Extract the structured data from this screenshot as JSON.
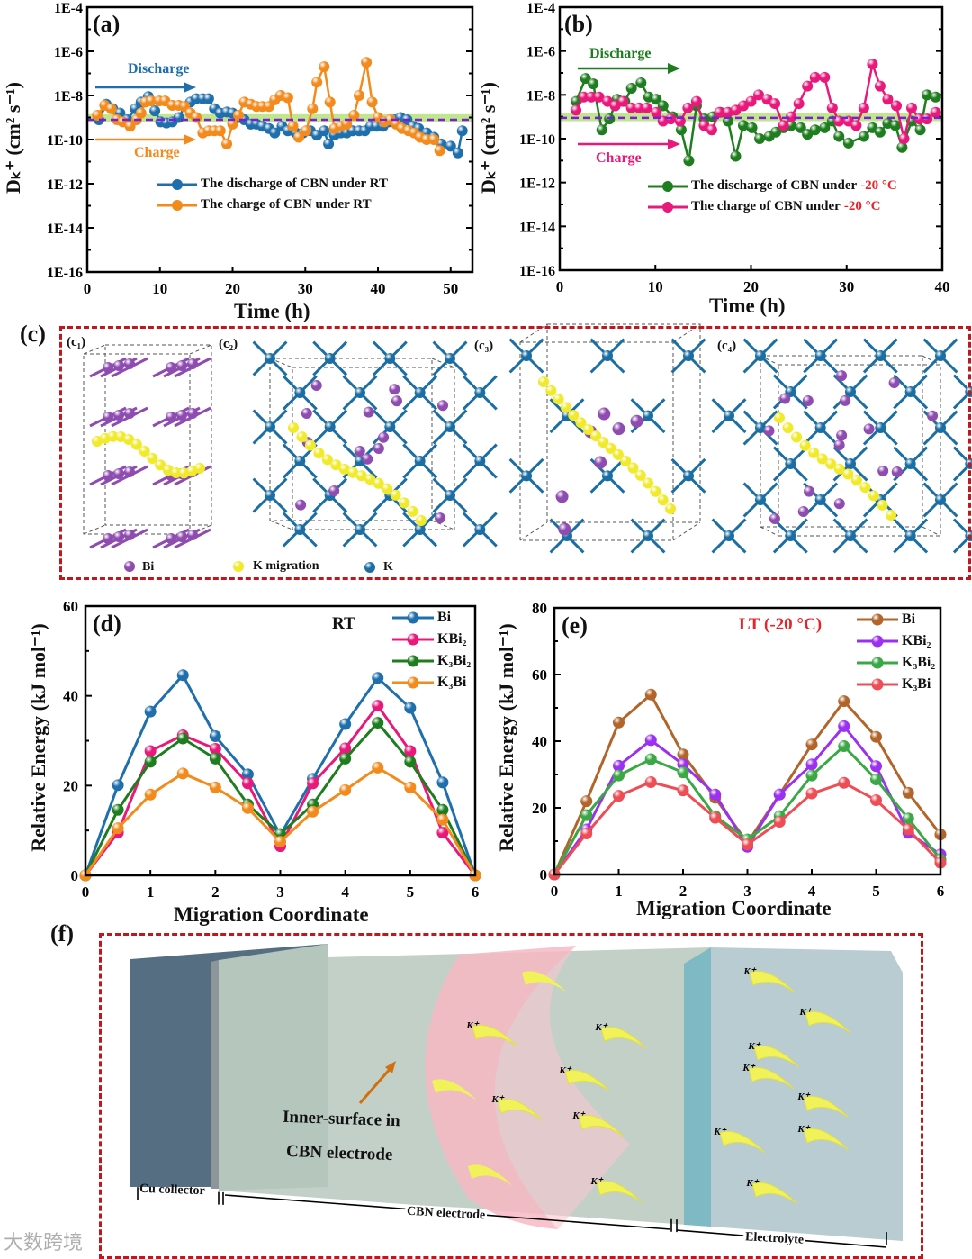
{
  "panels": {
    "a": {
      "label": "(a)",
      "annot_discharge": "Discharge",
      "annot_charge": "Charge"
    },
    "b": {
      "label": "(b)",
      "annot_discharge": "Discharge",
      "annot_charge": "Charge"
    },
    "c": {
      "label": "(c)",
      "sub_labels": [
        "(c₁)",
        "(c₂)",
        "(c₃)",
        "(c₄)"
      ],
      "legend": [
        "Bi",
        "K migration",
        "K"
      ]
    },
    "d": {
      "label": "(d)",
      "condition": "RT"
    },
    "e": {
      "label": "(e)",
      "condition": "LT (-20 °C)"
    },
    "f": {
      "label": "(f)",
      "inner_surface_line1": "Inner-surface in",
      "inner_surface_line2": "CBN electrode",
      "cu_collector": "Cu collector",
      "cbn_electrode": "CBN electrode",
      "electrolyte": "Electrolyte",
      "ion_label": "K⁺"
    }
  },
  "colors": {
    "blue": "#1f6fad",
    "orange": "#f28a1c",
    "green": "#1e7d1e",
    "pink": "#e8197a",
    "purple_dash": "#7a1fd6",
    "band": "#b5e27a",
    "bi_brown": "#b2652a",
    "kbi2_violet": "#9b30f0",
    "k3bi2_green": "#3aa844",
    "k3bi_red": "#ee4d55",
    "kbi2_pink": "#e8197a",
    "k3bi2_dgreen": "#1e7d1e",
    "k3bi_orange": "#f28a1c",
    "red_text": "#e8232a"
  },
  "watermark": "大数跨境",
  "chart_data": [
    {
      "id": "a",
      "type": "scatter-line",
      "title": "",
      "xlabel": "Time (h)",
      "ylabel": "Dₖ⁺ (cm² s⁻¹)",
      "xlim": [
        0,
        53
      ],
      "ylim_log10": [
        -16,
        -4
      ],
      "yscale": "log",
      "xticks": [
        0,
        10,
        20,
        30,
        40,
        50
      ],
      "yticks": [
        "1E-16",
        "1E-14",
        "1E-12",
        "1E-10",
        "1E-8",
        "1E-6",
        "1E-4"
      ],
      "reference_line_log10": -9.1,
      "reference_band_log10": [
        -9.2,
        -8.85
      ],
      "legend_position": "bottom-left",
      "series": [
        {
          "name": "The discharge of CBN under RT",
          "color": "#1f6fad",
          "x": [
            1.6,
            2.6,
            3.5,
            4.5,
            5.5,
            6.6,
            7.4,
            8.4,
            9.3,
            10.1,
            10.9,
            11.7,
            12.6,
            13.4,
            14.2,
            15.0,
            15.9,
            16.7,
            17.5,
            18.3,
            19.2,
            20.0,
            20.8,
            21.6,
            22.5,
            23.3,
            24.1,
            25.0,
            25.8,
            26.8,
            27.6,
            28.7,
            29.7,
            30.7,
            31.6,
            32.6,
            33.2,
            34.0,
            34.9,
            35.7,
            36.5,
            37.4,
            38.2,
            39.0,
            39.8,
            40.7,
            41.5,
            42.3,
            43.1,
            44.0,
            44.8,
            45.6,
            46.7,
            47.7,
            48.7,
            50.0,
            51.0,
            51.6
          ],
          "y_log10": [
            -9.1,
            -8.4,
            -8.6,
            -8.8,
            -9.1,
            -8.6,
            -8.3,
            -8.05,
            -8.7,
            -9.2,
            -9.25,
            -9.2,
            -9.0,
            -8.5,
            -8.3,
            -8.15,
            -8.15,
            -8.15,
            -8.6,
            -8.8,
            -8.75,
            -8.8,
            -9.0,
            -9.1,
            -9.3,
            -9.3,
            -9.4,
            -9.5,
            -9.7,
            -9.4,
            -9.6,
            -9.7,
            -9.7,
            -9.6,
            -9.8,
            -9.6,
            -10.2,
            -9.8,
            -9.7,
            -9.7,
            -9.6,
            -9.6,
            -9.6,
            -9.4,
            -9.4,
            -9.4,
            -9.2,
            -9.1,
            -9.0,
            -9.1,
            -9.4,
            -9.5,
            -9.7,
            -9.9,
            -10.2,
            -10.3,
            -10.6,
            -9.6
          ]
        },
        {
          "name": "The charge of CBN under RT",
          "color": "#f28a1c",
          "x": [
            1.4,
            2.4,
            3.3,
            4.1,
            4.9,
            5.9,
            6.8,
            7.4,
            8.0,
            8.8,
            9.9,
            10.7,
            11.7,
            12.6,
            13.4,
            14.2,
            15.0,
            15.9,
            16.7,
            17.5,
            18.3,
            19.2,
            20.0,
            20.8,
            21.6,
            22.5,
            23.3,
            24.1,
            25.0,
            25.8,
            26.6,
            27.6,
            28.3,
            29.1,
            30.1,
            31.0,
            31.6,
            32.6,
            33.4,
            34.0,
            34.9,
            35.7,
            36.7,
            37.4,
            38.4,
            39.2,
            40.0,
            40.9,
            41.7,
            42.5,
            43.3,
            44.2,
            45.0,
            45.8,
            46.7,
            47.7,
            48.5
          ],
          "y_log10": [
            -8.9,
            -8.45,
            -8.6,
            -9.1,
            -9.2,
            -9.4,
            -9.1,
            -8.8,
            -8.3,
            -8.25,
            -8.25,
            -8.25,
            -8.45,
            -8.45,
            -8.5,
            -8.8,
            -9.0,
            -9.7,
            -9.6,
            -9.6,
            -9.6,
            -10.2,
            -9.3,
            -8.9,
            -8.3,
            -8.4,
            -8.5,
            -8.5,
            -8.5,
            -8.2,
            -8.0,
            -8.1,
            -9.4,
            -9.9,
            -9.6,
            -8.6,
            -7.4,
            -6.7,
            -8.3,
            -9.5,
            -9.4,
            -9.3,
            -8.9,
            -8.0,
            -6.5,
            -8.3,
            -9.0,
            -9.2,
            -9.1,
            -9.3,
            -9.5,
            -9.6,
            -9.7,
            -9.9,
            -10.0,
            -10.0,
            -10.5
          ]
        }
      ]
    },
    {
      "id": "b",
      "type": "scatter-line",
      "title": "",
      "xlabel": "Time (h)",
      "ylabel": "Dₖ⁺ (cm² s⁻¹)",
      "xlim": [
        0,
        40
      ],
      "ylim_log10": [
        -16,
        -4
      ],
      "yscale": "log",
      "xticks": [
        0,
        10,
        20,
        30,
        40
      ],
      "yticks": [
        "1E-16",
        "1E-14",
        "1E-12",
        "1E-10",
        "1E-8",
        "1E-6",
        "1E-4"
      ],
      "reference_line_log10": -9.05,
      "reference_band_log10": [
        -9.2,
        -8.85
      ],
      "legend_position": "bottom-center",
      "legend_highlight": "-20 °C",
      "series": [
        {
          "name": "The discharge of CBN under ",
          "name_suffix": "-20 °C",
          "color": "#1e7d1e",
          "x": [
            1.7,
            2.7,
            3.5,
            4.4,
            5.2,
            6.0,
            6.8,
            7.5,
            8.5,
            9.3,
            10.1,
            10.8,
            11.8,
            12.7,
            13.5,
            14.3,
            15.1,
            16.0,
            16.8,
            17.6,
            18.4,
            19.2,
            20.1,
            20.9,
            21.9,
            22.6,
            23.4,
            24.2,
            25.2,
            25.9,
            26.7,
            27.7,
            28.5,
            29.2,
            30.2,
            31.8,
            32.7,
            33.5,
            34.3,
            35.1,
            35.8,
            36.8,
            37.7,
            38.4,
            39.3
          ],
          "y_log10": [
            -8.3,
            -7.25,
            -7.5,
            -9.6,
            -9.1,
            -8.2,
            -8.3,
            -7.7,
            -7.45,
            -8.1,
            -8.2,
            -8.5,
            -9.0,
            -9.6,
            -11.0,
            -8.5,
            -9.1,
            -9.0,
            -8.8,
            -9.2,
            -10.8,
            -9.4,
            -9.5,
            -10.0,
            -9.9,
            -9.7,
            -9.5,
            -9.4,
            -9.5,
            -9.8,
            -9.6,
            -9.5,
            -9.2,
            -9.9,
            -10.2,
            -9.9,
            -9.5,
            -9.7,
            -9.3,
            -9.4,
            -10.4,
            -9.2,
            -9.6,
            -8.0,
            -8.1
          ]
        },
        {
          "name": "The charge of CBN under ",
          "name_suffix": "-20 °C",
          "color": "#e8197a",
          "x": [
            1.7,
            2.5,
            3.3,
            4.1,
            5.0,
            5.8,
            6.6,
            7.5,
            8.3,
            9.1,
            10.1,
            10.8,
            11.6,
            12.6,
            13.4,
            14.3,
            15.1,
            15.9,
            16.7,
            17.6,
            18.4,
            19.2,
            20.0,
            20.8,
            21.7,
            22.5,
            23.4,
            24.2,
            25.0,
            25.9,
            26.7,
            27.7,
            28.5,
            29.2,
            30.2,
            31.0,
            31.8,
            32.7,
            33.5,
            34.3,
            35.2,
            36.0,
            36.8,
            37.6,
            38.4,
            39.3
          ],
          "y_log10": [
            -8.7,
            -8.1,
            -8.1,
            -8.1,
            -8.3,
            -8.5,
            -8.3,
            -8.6,
            -8.6,
            -8.6,
            -8.8,
            -9.2,
            -9.1,
            -9.2,
            -8.6,
            -8.3,
            -9.4,
            -9.6,
            -8.8,
            -8.8,
            -8.7,
            -8.5,
            -8.3,
            -8.0,
            -8.2,
            -8.4,
            -9.4,
            -9.0,
            -8.4,
            -7.6,
            -7.2,
            -7.2,
            -8.6,
            -9.2,
            -9.2,
            -9.4,
            -8.6,
            -6.6,
            -7.6,
            -8.2,
            -8.5,
            -10.0,
            -8.6,
            -9.1,
            -9.1,
            -8.8
          ]
        }
      ]
    },
    {
      "id": "d",
      "type": "line",
      "title": "RT",
      "xlabel": "Migration Coordinate",
      "ylabel": "Relative Energy (kJ mol⁻¹)",
      "xlim": [
        0,
        6
      ],
      "ylim": [
        0,
        60
      ],
      "xticks": [
        0,
        1,
        2,
        3,
        4,
        5,
        6
      ],
      "yticks": [
        0,
        20,
        40,
        60
      ],
      "legend_position": "top-right",
      "x": [
        0,
        0.5,
        1,
        1.5,
        2,
        2.5,
        3,
        3.5,
        4,
        4.5,
        5,
        5.5,
        6
      ],
      "series": [
        {
          "name": "Bi",
          "color": "#1f6fad",
          "values": [
            0,
            20.1,
            36.5,
            44.6,
            31.0,
            22.5,
            9.0,
            21.5,
            33.7,
            44.0,
            37.3,
            20.7,
            0
          ]
        },
        {
          "name": "KBi₂",
          "color": "#e8197a",
          "values": [
            0,
            9.5,
            27.7,
            31.2,
            28.2,
            20.5,
            6.5,
            20.5,
            28.3,
            37.8,
            27.7,
            9.5,
            0
          ]
        },
        {
          "name": "K₃Bi₂",
          "color": "#1e7d1e",
          "values": [
            0,
            14.6,
            25.3,
            30.5,
            26.0,
            15.8,
            9.2,
            15.8,
            26.0,
            34.0,
            25.3,
            14.6,
            0
          ]
        },
        {
          "name": "K₃Bi",
          "color": "#f28a1c",
          "values": [
            0,
            10.5,
            18.0,
            22.7,
            19.6,
            15.0,
            7.5,
            14.2,
            19.0,
            24.0,
            19.6,
            12.4,
            0
          ]
        }
      ]
    },
    {
      "id": "e",
      "type": "line",
      "title": "LT (-20 °C)",
      "xlabel": "Migration Coordinate",
      "ylabel": "Relative Energy (kJ mol⁻¹)",
      "xlim": [
        0,
        6
      ],
      "ylim": [
        0,
        80
      ],
      "xticks": [
        0,
        1,
        2,
        3,
        4,
        5,
        6
      ],
      "yticks": [
        0,
        20,
        40,
        60,
        80
      ],
      "legend_position": "top-right",
      "x": [
        0,
        0.5,
        1,
        1.5,
        2,
        2.5,
        3,
        3.5,
        4,
        4.5,
        5,
        5.5,
        6
      ],
      "series": [
        {
          "name": "Bi",
          "color": "#b2652a",
          "values": [
            0,
            22.0,
            45.6,
            54.0,
            36.0,
            23.0,
            9.5,
            24.0,
            39.0,
            52.0,
            41.3,
            24.5,
            12.0
          ]
        },
        {
          "name": "KBi₂",
          "color": "#9b30f0",
          "values": [
            0,
            13.5,
            32.6,
            40.3,
            33.0,
            24.0,
            8.3,
            24.0,
            33.0,
            44.5,
            32.5,
            12.5,
            6.0
          ]
        },
        {
          "name": "K₃Bi₂",
          "color": "#3aa844",
          "values": [
            0,
            17.8,
            29.7,
            34.6,
            30.6,
            17.5,
            10.5,
            17.5,
            29.7,
            38.5,
            28.5,
            16.8,
            4.5
          ]
        },
        {
          "name": "K₃Bi",
          "color": "#ee4d55",
          "values": [
            0,
            12.3,
            23.6,
            27.7,
            25.2,
            17.0,
            9.0,
            15.8,
            24.3,
            27.5,
            22.3,
            13.5,
            3.5
          ]
        }
      ]
    }
  ]
}
